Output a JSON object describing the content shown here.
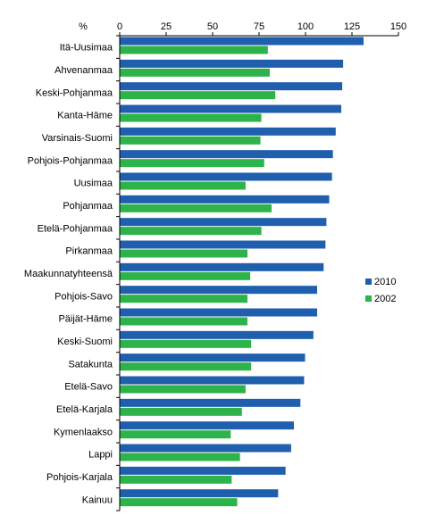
{
  "chart_data": {
    "type": "bar",
    "orientation": "horizontal",
    "unit_label": "%",
    "xlim": [
      0,
      150
    ],
    "xticks": [
      0,
      25,
      50,
      75,
      100,
      125,
      150
    ],
    "grid": false,
    "legend_position": "right",
    "categories": [
      "Itä-Uusimaa",
      "Ahvenanmaa",
      "Keski-Pohjanmaa",
      "Kanta-Häme",
      "Varsinais-Suomi",
      "Pohjois-Pohjanmaa",
      "Uusimaa",
      "Pohjanmaa",
      "Etelä-Pohjanmaa",
      "Pirkanmaa",
      "Maakunnatyhteensä",
      "Pohjois-Savo",
      "Päijät-Häme",
      "Keski-Suomi",
      "Satakunta",
      "Etelä-Savo",
      "Etelä-Karjala",
      "Kymenlaakso",
      "Lappi",
      "Pohjois-Karjala",
      "Kainuu"
    ],
    "series": [
      {
        "name": "2010",
        "color": "#1F5FAD",
        "values": [
          131,
          120,
          119.5,
          119,
          116,
          114.5,
          114,
          112.5,
          111,
          110.5,
          109.5,
          106,
          106,
          104,
          99.5,
          99,
          97,
          93.5,
          92,
          89,
          85
        ]
      },
      {
        "name": "2002",
        "color": "#2DB34A",
        "values": [
          79.5,
          80.5,
          83.5,
          76,
          75.5,
          77.5,
          67.5,
          81.5,
          76,
          68.5,
          70,
          68.5,
          68.5,
          70.5,
          70.5,
          67.5,
          65.5,
          59.5,
          64.5,
          60,
          63
        ]
      }
    ]
  }
}
